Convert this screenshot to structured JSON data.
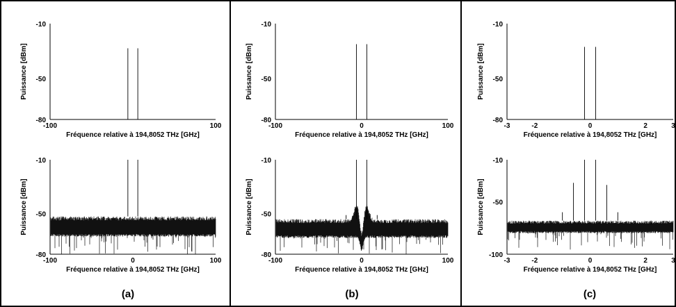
{
  "figure": {
    "panel_labels": [
      "(a)",
      "(b)",
      "(c)"
    ]
  },
  "chart_data": [
    {
      "type": "line",
      "column": "a",
      "row": "top",
      "xlabel": "Fréquence relative à 194,8052 THz [GHz]",
      "ylabel": "Puissance [dBm]",
      "xlim": [
        -100,
        100
      ],
      "ylim": [
        -80,
        -10
      ],
      "xticks": [
        "-100",
        "100"
      ],
      "yticks": [
        "-10",
        "-50",
        "-80"
      ],
      "peaks": [
        {
          "x": -6,
          "y": -28
        },
        {
          "x": 6,
          "y": -28
        }
      ],
      "noise": null
    },
    {
      "type": "line",
      "column": "a",
      "row": "bottom",
      "xlabel": "Fréquence relative à 194,8052 THz [GHz]",
      "ylabel": "Puissance [dBm]",
      "xlim": [
        -100,
        100
      ],
      "ylim": [
        -80,
        -10
      ],
      "xticks": [
        "-100",
        "0",
        "100"
      ],
      "yticks": [
        "-10",
        "-50",
        "-80"
      ],
      "peaks": [
        {
          "x": -6,
          "y": -10
        },
        {
          "x": 6,
          "y": -10
        }
      ],
      "noise": {
        "floor_min": -67,
        "floor_max": -52,
        "dips_to": -80
      }
    },
    {
      "type": "line",
      "column": "b",
      "row": "top",
      "xlabel": "Fréquence relative à 194,8052 THz [GHz]",
      "ylabel": "Puissance [dBm]",
      "xlim": [
        -100,
        100
      ],
      "ylim": [
        -80,
        -10
      ],
      "xticks": [
        "-100",
        "0",
        "100"
      ],
      "yticks": [
        "-10",
        "-50",
        "-80"
      ],
      "peaks": [
        {
          "x": -6,
          "y": -25
        },
        {
          "x": 6,
          "y": -25
        }
      ],
      "noise": null
    },
    {
      "type": "line",
      "column": "b",
      "row": "bottom",
      "xlabel": "Fréquence relative à 194,8052 THz [GHz]",
      "ylabel": "Puissance [dBm]",
      "xlim": [
        -100,
        100
      ],
      "ylim": [
        -80,
        -10
      ],
      "xticks": [
        "-100",
        "0",
        "100"
      ],
      "yticks": [
        "-10",
        "-50",
        "-80"
      ],
      "peaks": [
        {
          "x": -6,
          "y": -10
        },
        {
          "x": 6,
          "y": -10
        },
        {
          "x": -18,
          "y": -51
        },
        {
          "x": 18,
          "y": -51
        }
      ],
      "noise": {
        "floor_min": -68,
        "floor_max": -54,
        "dips_to": -80,
        "bumps": [
          {
            "x": -6,
            "y": -43
          },
          {
            "x": 6,
            "y": -43
          }
        ],
        "notch": {
          "x": 0,
          "y": -78
        }
      }
    },
    {
      "type": "line",
      "column": "c",
      "row": "top",
      "xlabel": "Fréquence relative à 194,8052 THz [GHz]",
      "ylabel": "Puissance [dBm]",
      "xlim": [
        -3,
        3
      ],
      "ylim": [
        -80,
        -10
      ],
      "xticks": [
        "-3",
        "-2",
        "0",
        "2",
        "3"
      ],
      "yticks": [
        "-10",
        "-50",
        "-80"
      ],
      "peaks": [
        {
          "x": -0.2,
          "y": -27
        },
        {
          "x": 0.2,
          "y": -27
        }
      ],
      "noise": null
    },
    {
      "type": "line",
      "column": "c",
      "row": "bottom",
      "xlabel": "Fréquence relative à 194,8052 THz [GHz]",
      "ylabel": "Puissance [dBm]",
      "xlim": [
        -3,
        3
      ],
      "ylim": [
        -100,
        -10
      ],
      "xticks": [
        "-3",
        "-2",
        "0",
        "2",
        "3"
      ],
      "yticks": [
        "-10",
        "-50",
        "-100"
      ],
      "peaks": [
        {
          "x": -0.6,
          "y": -32
        },
        {
          "x": -0.2,
          "y": -10
        },
        {
          "x": 0.2,
          "y": -10
        },
        {
          "x": 0.6,
          "y": -34
        },
        {
          "x": -1.0,
          "y": -60
        },
        {
          "x": 1.0,
          "y": -60
        },
        {
          "x": -2.2,
          "y": -72
        },
        {
          "x": 2.2,
          "y": -72
        }
      ],
      "noise": {
        "floor_min": -80,
        "floor_max": -68,
        "dips_to": -96
      }
    }
  ]
}
